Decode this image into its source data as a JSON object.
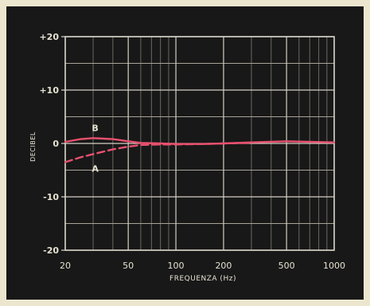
{
  "chart_data": {
    "type": "line",
    "xlabel": "FREQUENZA (Hz)",
    "ylabel": "DECIBEL",
    "x_scale": "log",
    "xlim": [
      20,
      1000
    ],
    "ylim": [
      -20,
      20
    ],
    "x_ticks": [
      20,
      50,
      100,
      200,
      500,
      1000
    ],
    "x_tick_labels": [
      "20",
      "50",
      "100",
      "200",
      "500",
      "1000"
    ],
    "y_ticks": [
      20,
      10,
      0,
      -10,
      -20
    ],
    "y_tick_labels": [
      "+20",
      "+10",
      "0",
      "-10",
      "-20"
    ],
    "grid": true,
    "series": [
      {
        "name": "B",
        "style": "solid",
        "color": "#e8506e",
        "x": [
          20,
          25,
          30,
          35,
          40,
          50,
          60,
          80,
          100,
          150,
          200,
          300,
          500,
          700,
          1000
        ],
        "y": [
          0.3,
          0.8,
          1.0,
          0.9,
          0.8,
          0.4,
          0.1,
          0.0,
          -0.1,
          -0.1,
          0.0,
          0.2,
          0.4,
          0.3,
          0.2
        ]
      },
      {
        "name": "A",
        "style": "dashed",
        "color": "#e8506e",
        "x": [
          20,
          25,
          30,
          40,
          50,
          60,
          80,
          100,
          150,
          200,
          300
        ],
        "y": [
          -3.5,
          -2.6,
          -2.0,
          -1.1,
          -0.6,
          -0.3,
          -0.2,
          -0.2,
          -0.1,
          0.0,
          0.1
        ]
      }
    ]
  }
}
